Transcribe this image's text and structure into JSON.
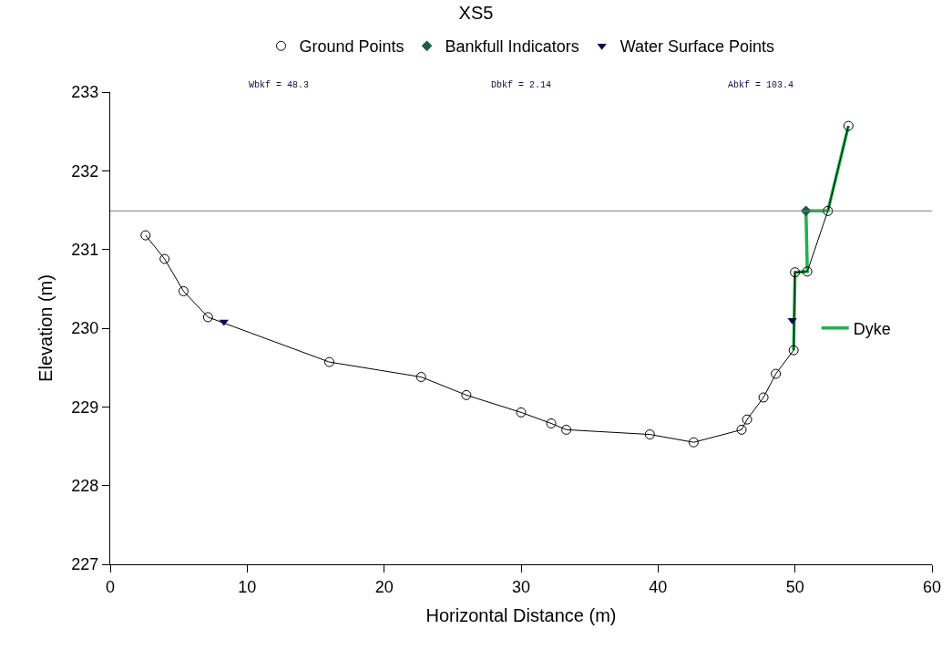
{
  "chart_data": {
    "type": "line",
    "title": "XS5",
    "xlabel": "Horizontal Distance (m)",
    "ylabel": "Elevation (m)",
    "annotations": [
      "Wbkf = 48.3",
      "Dbkf = 2.14",
      "Abkf = 103.4"
    ],
    "xlim": [
      0,
      60
    ],
    "xticks": [
      0,
      10,
      20,
      30,
      40,
      50,
      60
    ],
    "ylim": [
      227,
      233
    ],
    "yticks": [
      227,
      228,
      229,
      230,
      231,
      232,
      233
    ],
    "legend": "top",
    "ref_lines": [
      {
        "axis": "y",
        "value": 231.49,
        "color": "#808080"
      }
    ],
    "series": [
      {
        "name": "Ground Points",
        "marker": "circle",
        "color": "#000000",
        "x": [
          2.58,
          3.97,
          5.35,
          7.14,
          16.0,
          22.7,
          26.0,
          30.0,
          32.2,
          33.3,
          39.4,
          42.6,
          46.1,
          46.5,
          47.7,
          48.6,
          49.9,
          50.0,
          50.9,
          52.4,
          53.9
        ],
        "values": [
          231.18,
          230.88,
          230.47,
          230.14,
          229.57,
          229.38,
          229.15,
          228.93,
          228.79,
          228.71,
          228.65,
          228.55,
          228.71,
          228.84,
          229.12,
          229.42,
          229.72,
          230.71,
          230.72,
          231.49,
          232.57
        ]
      },
      {
        "name": "Bankfull Indicators",
        "type": "scatter",
        "marker": "diamond",
        "color": "#1f5c45",
        "x": [
          50.8
        ],
        "values": [
          231.49
        ]
      },
      {
        "name": "Water Surface Points",
        "type": "scatter",
        "marker": "triangle",
        "color": "#0a0a50",
        "x": [
          8.3,
          49.8
        ],
        "values": [
          230.08,
          230.1
        ]
      },
      {
        "name": "Dyke",
        "marker": "none",
        "color": "#22b04b",
        "x": [
          49.9,
          50.0,
          50.9,
          50.8,
          52.4,
          53.9
        ],
        "values": [
          229.72,
          230.71,
          230.72,
          231.49,
          231.49,
          232.57
        ]
      }
    ]
  }
}
